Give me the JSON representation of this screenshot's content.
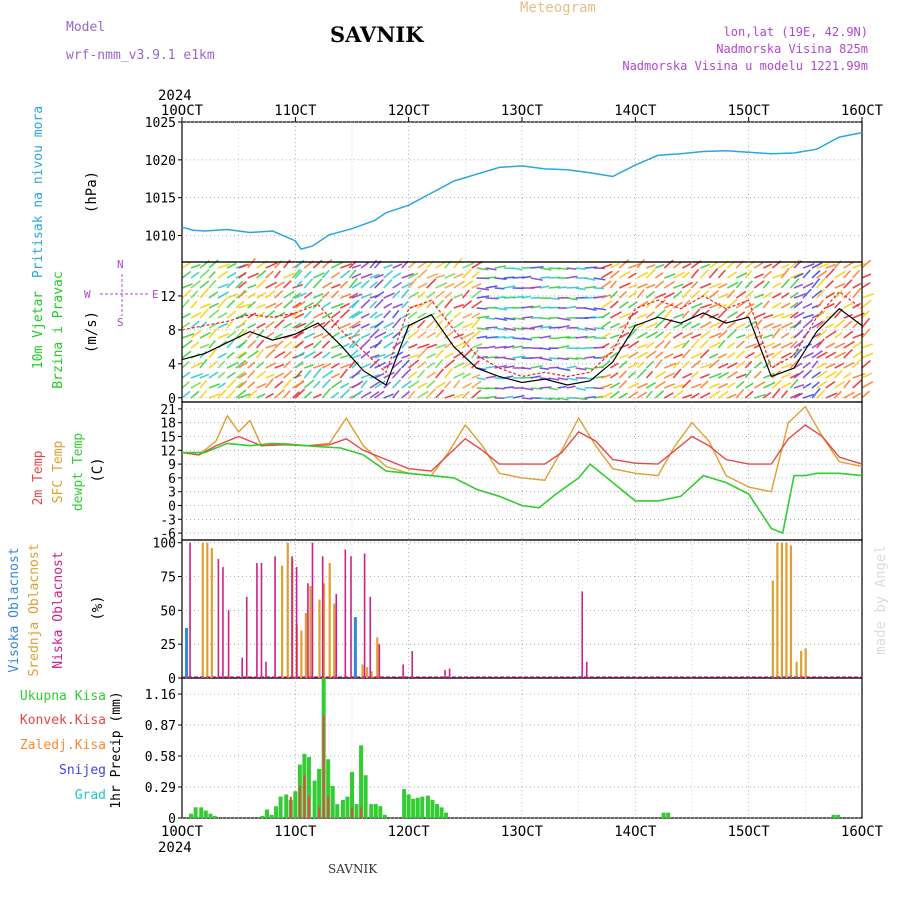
{
  "header": {
    "model_label": "Model",
    "model_name": "wrf-nmm_v3.9.1 e1km",
    "title": "SAVNIK",
    "product": "Meteogram",
    "lonlat": "lon,lat (19E, 42.9N)",
    "altitude": "Nadmorska Visina 825m",
    "model_altitude": "Nadmorska Visina u modelu 1221.99m",
    "watermark": "made by Angel",
    "footer": "SAVNIK"
  },
  "colors": {
    "pressure": "#2aa6e0",
    "temp2m": "#e84848",
    "sfc": "#e0a030",
    "dewpt": "#33cc33",
    "high_cloud": "#3388dd",
    "mid_cloud": "#e0a030",
    "low_cloud": "#cc2288",
    "total": "#33cc33",
    "conv": "#e84848",
    "frozen": "#ff8833",
    "snow": "#4444dd",
    "hail": "#22c8c8",
    "wind_label": "#22cc22",
    "axis_legend": "#b048d0"
  },
  "chart_data": [
    {
      "type": "line",
      "panel": "pressure",
      "top_date_labels": [
        "10OCT",
        "11OCT",
        "12OCT",
        "13OCT",
        "14OCT",
        "15OCT",
        "16OCT"
      ],
      "top_year": "2024",
      "side_label": "Pritisak na nivou mora",
      "unit": "(hPa)",
      "ylim": [
        1006.5,
        1025
      ],
      "yticks": [
        1010,
        1015,
        1020,
        1025
      ],
      "xlim": [
        0,
        6
      ],
      "series": [
        {
          "x": [
            0,
            0.1,
            0.2,
            0.4,
            0.6,
            0.8,
            1.0,
            1.05,
            1.15,
            1.3,
            1.5,
            1.7,
            1.8,
            2.0,
            2.2,
            2.4,
            2.6,
            2.8,
            3.0,
            3.2,
            3.4,
            3.6,
            3.8,
            4.0,
            4.2,
            4.4,
            4.6,
            4.8,
            5.0,
            5.2,
            5.4,
            5.6,
            5.8,
            6.0
          ],
          "values": [
            1011.1,
            1010.7,
            1010.6,
            1010.8,
            1010.4,
            1010.6,
            1009.3,
            1008.2,
            1008.6,
            1010.1,
            1010.9,
            1012.0,
            1013.0,
            1014.0,
            1015.6,
            1017.2,
            1018.1,
            1019.0,
            1019.2,
            1018.8,
            1018.7,
            1018.3,
            1017.8,
            1019.3,
            1020.6,
            1020.8,
            1021.1,
            1021.2,
            1021.0,
            1020.8,
            1020.9,
            1021.4,
            1023.0,
            1023.6
          ]
        }
      ]
    },
    {
      "type": "line",
      "panel": "wind",
      "side_labels": [
        "10m Vjetar",
        "Brzina i Pravac"
      ],
      "unit": "(m/s)",
      "direction_legend": [
        "W",
        "E",
        "N",
        "S"
      ],
      "ylim": [
        -0.5,
        16
      ],
      "yticks": [
        0,
        4,
        8,
        12
      ],
      "xlim": [
        0,
        6
      ],
      "series": [
        {
          "name": "speed",
          "x": [
            0,
            0.2,
            0.4,
            0.6,
            0.8,
            1.0,
            1.2,
            1.4,
            1.6,
            1.8,
            2.0,
            2.2,
            2.4,
            2.6,
            2.8,
            3.0,
            3.2,
            3.4,
            3.6,
            3.8,
            4.0,
            4.2,
            4.4,
            4.6,
            4.8,
            5.0,
            5.2,
            5.4,
            5.6,
            5.8,
            6.0
          ],
          "values": [
            4.5,
            5.2,
            6.5,
            7.8,
            6.8,
            7.5,
            8.8,
            6.2,
            3.2,
            1.5,
            8.5,
            9.8,
            6.0,
            3.5,
            2.5,
            1.8,
            2.2,
            1.5,
            2.0,
            4.2,
            8.5,
            9.5,
            8.8,
            10.0,
            8.8,
            9.5,
            2.5,
            3.5,
            7.8,
            10.5,
            8.5
          ]
        },
        {
          "name": "gust",
          "x": [
            0,
            0.2,
            0.4,
            0.6,
            0.8,
            1.0,
            1.2,
            1.4,
            1.6,
            1.8,
            2.0,
            2.2,
            2.4,
            2.6,
            2.8,
            3.0,
            3.2,
            3.4,
            3.6,
            3.8,
            4.0,
            4.2,
            4.4,
            4.6,
            4.8,
            5.0,
            5.2,
            5.4,
            5.6,
            5.8,
            6.0
          ],
          "values": [
            8.0,
            8.5,
            9.0,
            9.8,
            9.5,
            10.0,
            11.0,
            8.0,
            5.5,
            3.0,
            10.5,
            11.5,
            8.0,
            5.0,
            3.5,
            2.5,
            3.0,
            2.5,
            3.0,
            5.5,
            10.5,
            11.5,
            10.5,
            12.0,
            10.5,
            11.5,
            3.5,
            5.0,
            9.5,
            12.5,
            10.5
          ]
        }
      ]
    },
    {
      "type": "line",
      "panel": "temperature",
      "side_labels": [
        "2m Temp",
        "SFC Temp",
        "dewpt Temp"
      ],
      "unit": "(C)",
      "ylim": [
        -7.5,
        22.5
      ],
      "yticks": [
        -6,
        -3,
        0,
        3,
        6,
        9,
        12,
        15,
        18,
        21
      ],
      "xlim": [
        0,
        6
      ],
      "series": [
        {
          "name": "2m Temp",
          "x": [
            0,
            0.15,
            0.3,
            0.5,
            0.7,
            0.9,
            1.1,
            1.3,
            1.45,
            1.6,
            1.8,
            2.0,
            2.2,
            2.35,
            2.5,
            2.65,
            2.8,
            3.0,
            3.2,
            3.35,
            3.5,
            3.65,
            3.8,
            4.0,
            4.2,
            4.35,
            4.5,
            4.65,
            4.8,
            5.0,
            5.2,
            5.35,
            5.5,
            5.65,
            5.8,
            6.0
          ],
          "values": [
            11.5,
            11.0,
            13.0,
            15.0,
            13.0,
            13.2,
            13.0,
            13.2,
            14.5,
            12.0,
            10.0,
            8.0,
            7.5,
            11.0,
            14.5,
            12.0,
            9.0,
            9.0,
            9.0,
            11.5,
            16.0,
            14.0,
            10.0,
            9.2,
            9.0,
            12.0,
            15.0,
            13.0,
            10.0,
            9.0,
            9.0,
            14.5,
            17.5,
            15.0,
            10.5,
            9.0
          ]
        },
        {
          "name": "SFC Temp",
          "x": [
            0,
            0.15,
            0.3,
            0.4,
            0.5,
            0.6,
            0.7,
            0.9,
            1.1,
            1.3,
            1.45,
            1.6,
            1.8,
            2.0,
            2.2,
            2.35,
            2.5,
            2.65,
            2.8,
            3.0,
            3.2,
            3.35,
            3.5,
            3.65,
            3.8,
            4.0,
            4.2,
            4.35,
            4.5,
            4.65,
            4.8,
            5.0,
            5.2,
            5.35,
            5.5,
            5.65,
            5.8,
            6.0
          ],
          "values": [
            11.5,
            11.0,
            14.0,
            19.5,
            16.0,
            18.5,
            13.0,
            13.5,
            13.0,
            13.5,
            19.0,
            13.0,
            8.5,
            7.0,
            6.5,
            11.5,
            17.5,
            13.0,
            7.0,
            6.0,
            5.5,
            12.0,
            19.0,
            13.0,
            8.0,
            7.0,
            6.5,
            13.0,
            18.0,
            14.0,
            6.5,
            4.0,
            3.0,
            18.0,
            21.5,
            15.0,
            9.5,
            8.5
          ]
        },
        {
          "name": "dewpt Temp",
          "x": [
            0,
            0.2,
            0.4,
            0.6,
            0.8,
            1.0,
            1.2,
            1.4,
            1.6,
            1.8,
            2.0,
            2.2,
            2.4,
            2.6,
            2.8,
            3.0,
            3.15,
            3.3,
            3.5,
            3.6,
            3.8,
            4.0,
            4.2,
            4.4,
            4.6,
            4.8,
            5.0,
            5.2,
            5.3,
            5.4,
            5.5,
            5.6,
            5.8,
            6.0
          ],
          "values": [
            11.5,
            11.5,
            13.5,
            13.0,
            13.5,
            13.2,
            12.8,
            12.5,
            11.0,
            7.5,
            7.0,
            6.5,
            6.0,
            3.5,
            2.0,
            0.0,
            -0.5,
            2.5,
            6.0,
            9.0,
            5.0,
            1.0,
            1.0,
            2.0,
            6.5,
            5.0,
            2.5,
            -5.0,
            -6.0,
            6.5,
            6.5,
            7.0,
            7.0,
            6.5
          ]
        }
      ]
    },
    {
      "type": "bar",
      "panel": "clouds",
      "side_labels": [
        "Visoka Oblacnost",
        "Srednja Oblacnost",
        "Niska Oblacnost"
      ],
      "unit": "(%)",
      "ylim": [
        0,
        102
      ],
      "yticks": [
        0,
        25,
        50,
        75,
        100
      ],
      "xlim": [
        0,
        6
      ],
      "series": [
        {
          "name": "Visoka Oblacnost",
          "x": [
            0.04,
            1.53
          ],
          "values": [
            37,
            45
          ]
        },
        {
          "name": "Srednja Oblacnost",
          "x": [
            0.17,
            0.21,
            0.25,
            0.87,
            0.92,
            0.96,
            1.0,
            1.04,
            1.08,
            1.12,
            1.2,
            1.24,
            1.29,
            1.33,
            1.58,
            1.62,
            1.66,
            1.71,
            5.2,
            5.24,
            5.28,
            5.32,
            5.36,
            5.41,
            5.45,
            5.49
          ],
          "values": [
            100,
            100,
            96,
            83,
            100,
            88,
            40,
            35,
            48,
            68,
            58,
            70,
            85,
            55,
            10,
            8,
            5,
            30,
            72,
            100,
            100,
            100,
            98,
            12,
            20,
            22
          ]
        },
        {
          "name": "Niska Oblacnost",
          "x": [
            0.08,
            0.33,
            0.37,
            0.42,
            0.54,
            0.58,
            0.67,
            0.71,
            0.75,
            0.83,
            0.98,
            1.02,
            1.12,
            1.16,
            1.25,
            1.37,
            1.45,
            1.5,
            1.62,
            1.67,
            1.75,
            1.96,
            2.04,
            2.33,
            2.37,
            3.54,
            3.58
          ],
          "values": [
            100,
            88,
            82,
            50,
            15,
            60,
            85,
            85,
            12,
            90,
            90,
            82,
            70,
            100,
            90,
            62,
            95,
            90,
            92,
            60,
            25,
            10,
            20,
            6,
            7,
            64,
            12
          ]
        }
      ]
    },
    {
      "type": "bar",
      "panel": "precipitation",
      "side_labels": [
        "Ukupna Kisa",
        "Konvek.Kisa",
        "Zaledj.Kisa",
        "Snijeg",
        "Grad"
      ],
      "unit": "1hr Precip (mm)",
      "bottom_date_labels": [
        "10OCT",
        "11OCT",
        "12OCT",
        "13OCT",
        "14OCT",
        "15OCT",
        "16OCT"
      ],
      "bottom_year": "2024",
      "ylim": [
        0,
        1.31
      ],
      "yticks": [
        0,
        0.29,
        0.58,
        0.87,
        1.16
      ],
      "xlim": [
        0,
        6
      ],
      "series": [
        {
          "name": "Ukupna Kisa",
          "x": [
            0.08,
            0.12,
            0.17,
            0.21,
            0.25,
            0.29,
            0.71,
            0.75,
            0.79,
            0.83,
            0.87,
            0.92,
            0.96,
            1.0,
            1.04,
            1.08,
            1.12,
            1.17,
            1.21,
            1.25,
            1.29,
            1.33,
            1.37,
            1.42,
            1.46,
            1.5,
            1.54,
            1.58,
            1.62,
            1.67,
            1.71,
            1.75,
            1.79,
            1.96,
            2.0,
            2.04,
            2.08,
            2.12,
            2.17,
            2.21,
            2.25,
            2.29,
            2.33,
            4.25,
            4.29,
            5.75,
            5.79
          ],
          "values": [
            0.04,
            0.1,
            0.1,
            0.07,
            0.04,
            0.02,
            0.02,
            0.08,
            0.03,
            0.11,
            0.2,
            0.22,
            0.17,
            0.25,
            0.5,
            0.6,
            0.57,
            0.35,
            0.46,
            1.31,
            0.55,
            0.3,
            0.13,
            0.17,
            0.2,
            0.43,
            0.13,
            0.68,
            0.4,
            0.13,
            0.13,
            0.11,
            0.03,
            0.27,
            0.22,
            0.18,
            0.19,
            0.2,
            0.21,
            0.17,
            0.13,
            0.1,
            0.05,
            0.05,
            0.05,
            0.03,
            0.03
          ]
        },
        {
          "name": "Konvek.Kisa",
          "x": [
            0.96,
            1.04,
            1.08,
            1.12,
            1.21,
            1.25,
            1.29,
            1.5,
            1.58
          ],
          "values": [
            0.2,
            0.3,
            0.4,
            0.2,
            0.1,
            0.96,
            0.2,
            0.1,
            0.1
          ]
        }
      ]
    }
  ]
}
